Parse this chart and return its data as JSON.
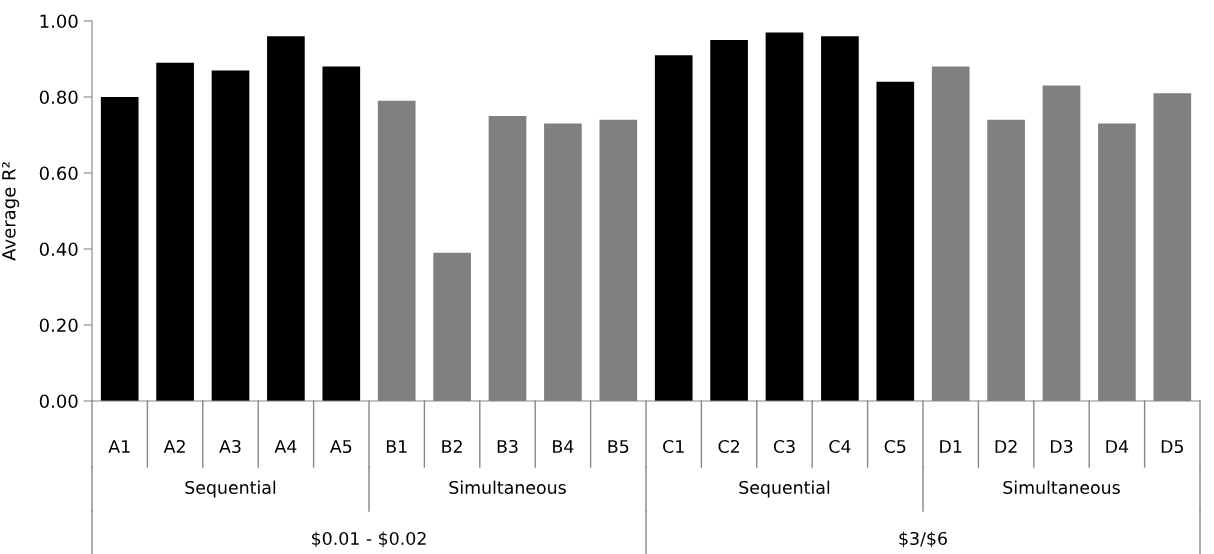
{
  "chart_data": {
    "type": "bar",
    "ylabel": "Average R²",
    "categories": [
      "A1",
      "A2",
      "A3",
      "A4",
      "A5",
      "B1",
      "B2",
      "B3",
      "B4",
      "B5",
      "C1",
      "C2",
      "C3",
      "C4",
      "C5",
      "D1",
      "D2",
      "D3",
      "D4",
      "D5"
    ],
    "values": [
      0.8,
      0.89,
      0.87,
      0.96,
      0.88,
      0.79,
      0.39,
      0.75,
      0.73,
      0.74,
      0.91,
      0.95,
      0.97,
      0.96,
      0.84,
      0.88,
      0.74,
      0.83,
      0.73,
      0.81
    ],
    "colors": [
      "#000000",
      "#000000",
      "#000000",
      "#000000",
      "#000000",
      "#808080",
      "#808080",
      "#808080",
      "#808080",
      "#808080",
      "#000000",
      "#000000",
      "#000000",
      "#000000",
      "#000000",
      "#808080",
      "#808080",
      "#808080",
      "#808080",
      "#808080"
    ],
    "ylim": [
      0,
      1
    ],
    "yticks": [
      {
        "value": 0,
        "label": "0.00"
      },
      {
        "value": 0.2,
        "label": "0.20"
      },
      {
        "value": 0.4,
        "label": "0.40"
      },
      {
        "value": 0.6,
        "label": "0.60"
      },
      {
        "value": 0.8,
        "label": "0.80"
      },
      {
        "value": 1,
        "label": "1.00"
      }
    ],
    "annotations": [
      "Sequential",
      "Simultaneous",
      "Sequential",
      "Simultaneous",
      "$0.01 - $0.02",
      "$3/$6"
    ],
    "grid": false,
    "legend": false
  }
}
